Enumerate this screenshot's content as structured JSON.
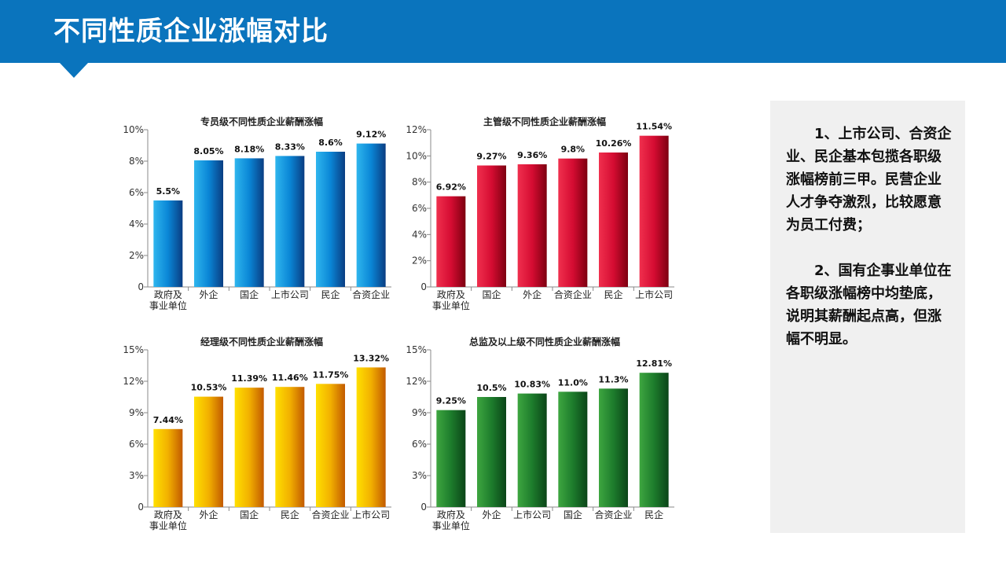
{
  "page": {
    "title": "不同性质企业涨幅对比"
  },
  "notes": [
    "1、上市公司、合资企业、民企基本包揽各职级涨幅榜前三甲。民营企业人才争夺激烈，比较愿意为员工付费；",
    "2、国有企事业单位在各职级涨幅榜中均垫底，说明其薪酬起点高，但涨幅不明显。"
  ],
  "chart_data": [
    {
      "type": "bar",
      "title": "专员级不同性质企业薪酬涨幅",
      "categories": [
        "政府及\n事业单位",
        "外企",
        "国企",
        "上市公司",
        "民企",
        "合资企业"
      ],
      "values": [
        5.5,
        8.05,
        8.18,
        8.33,
        8.6,
        9.12
      ],
      "value_labels": [
        "5.5%",
        "8.05%",
        "8.18%",
        "8.33%",
        "8.6%",
        "9.12%"
      ],
      "yticks": [
        "0",
        "2%",
        "4%",
        "6%",
        "8%",
        "10%"
      ],
      "ylim": [
        0,
        10
      ],
      "grid": false,
      "colors": {
        "light": "#2fb6ee",
        "mid": "#0a86d6",
        "dark": "#0a3d82"
      }
    },
    {
      "type": "bar",
      "title": "主管级不同性质企业薪酬涨幅",
      "categories": [
        "政府及\n事业单位",
        "国企",
        "外企",
        "合资企业",
        "民企",
        "上市公司"
      ],
      "values": [
        6.92,
        9.27,
        9.36,
        9.8,
        10.26,
        11.54
      ],
      "value_labels": [
        "6.92%",
        "9.27%",
        "9.36%",
        "9.8%",
        "10.26%",
        "11.54%"
      ],
      "yticks": [
        "0",
        "2%",
        "4%",
        "6%",
        "8%",
        "10%",
        "12%"
      ],
      "ylim": [
        0,
        12
      ],
      "grid": false,
      "colors": {
        "light": "#f0304e",
        "mid": "#d50c32",
        "dark": "#7d0010"
      }
    },
    {
      "type": "bar",
      "title": "经理级不同性质企业薪酬涨幅",
      "categories": [
        "政府及\n事业单位",
        "外企",
        "国企",
        "民企",
        "合资企业",
        "上市公司"
      ],
      "values": [
        7.44,
        10.53,
        11.39,
        11.46,
        11.75,
        13.32
      ],
      "value_labels": [
        "7.44%",
        "10.53%",
        "11.39%",
        "11.46%",
        "11.75%",
        "13.32%"
      ],
      "yticks": [
        "0",
        "3%",
        "6%",
        "9%",
        "12%",
        "15%"
      ],
      "ylim": [
        0,
        15
      ],
      "grid": false,
      "colors": {
        "light": "#ffe000",
        "mid": "#f2b000",
        "dark": "#c25a00"
      }
    },
    {
      "type": "bar",
      "title": "总监及以上级不同性质企业薪酬涨幅",
      "categories": [
        "政府及\n事业单位",
        "外企",
        "上市公司",
        "国企",
        "合资企业",
        "民企"
      ],
      "values": [
        9.25,
        10.5,
        10.83,
        11.0,
        11.3,
        12.81
      ],
      "value_labels": [
        "9.25%",
        "10.5%",
        "10.83%",
        "11.0%",
        "11.3%",
        "12.81%"
      ],
      "yticks": [
        "0",
        "3%",
        "6%",
        "9%",
        "12%",
        "15%"
      ],
      "ylim": [
        0,
        15
      ],
      "grid": false,
      "colors": {
        "light": "#3ea640",
        "mid": "#1d7c2c",
        "dark": "#0b4518"
      }
    }
  ]
}
